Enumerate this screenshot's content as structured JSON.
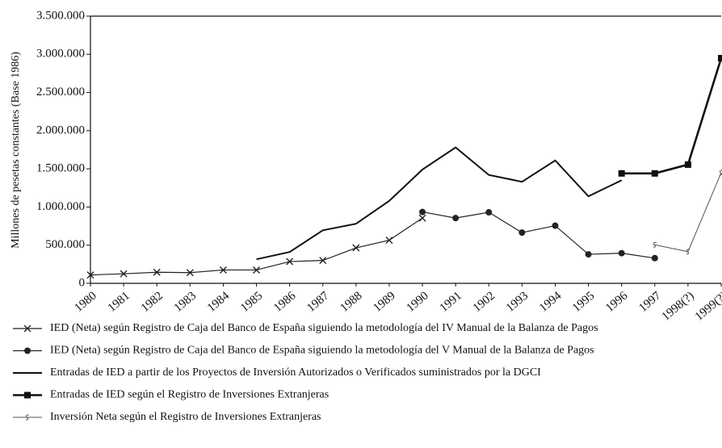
{
  "chart_data": {
    "type": "line",
    "y_label": "Millones de pesetas constantes (Base 1986)",
    "categories": [
      "1980",
      "1981",
      "1982",
      "1983",
      "1984",
      "1985",
      "1986",
      "1987",
      "1988",
      "1989",
      "1990",
      "1991",
      "1902",
      "1993",
      "1994",
      "1995",
      "1996",
      "1997",
      "1998(?)",
      "1999(?)"
    ],
    "ylim": [
      0,
      3500000
    ],
    "yticks": [
      0,
      {
        "value": 500000,
        "label": "500.000"
      },
      {
        "value": 1000000,
        "label": "1.000.000"
      },
      {
        "value": 1500000,
        "label": "1.500.000"
      },
      {
        "value": 2000000,
        "label": "2.000.000"
      },
      {
        "value": 2500000,
        "label": "2.500.000"
      },
      {
        "value": 3000000,
        "label": "3.000.000"
      },
      {
        "value": 3500000,
        "label": "3.500.000"
      }
    ],
    "series": [
      {
        "name": "IED (Neta) según Registro de Caja del Banco de España siguiendo la metodología del IV Manual de la Balanza de Pagos",
        "color": "#222222",
        "marker": "x",
        "values": [
          110000,
          125000,
          145000,
          140000,
          175000,
          175000,
          285000,
          300000,
          465000,
          565000,
          855000,
          null,
          null,
          null,
          null,
          null,
          null,
          null,
          null,
          null
        ]
      },
      {
        "name": "IED (Neta) según Registro de Caja del Banco de España siguiendo la metodología del V Manual de la Balanza de Pagos",
        "color": "#222222",
        "marker": "circle",
        "values": [
          null,
          null,
          null,
          null,
          null,
          null,
          null,
          null,
          null,
          null,
          935000,
          855000,
          930000,
          665000,
          755000,
          380000,
          395000,
          330000,
          null,
          null
        ]
      },
      {
        "name": "Entradas de IED a partir de los Proyectos de Inversión Autorizados o Verificados suministrados por la DGCI",
        "color": "#111111",
        "marker": "none",
        "values": [
          null,
          null,
          null,
          null,
          null,
          315000,
          410000,
          695000,
          780000,
          1080000,
          1490000,
          1780000,
          1420000,
          1330000,
          1610000,
          1140000,
          1350000,
          null,
          null,
          null
        ]
      },
      {
        "name": "Entradas de IED según el Registro de Inversiones Extranjeras",
        "color": "#111111",
        "marker": "square",
        "values": [
          null,
          null,
          null,
          null,
          null,
          null,
          null,
          null,
          null,
          null,
          null,
          null,
          null,
          null,
          null,
          null,
          1440000,
          1440000,
          1555000,
          2950000
        ]
      },
      {
        "name": "Inversión Neta según el Registro de Inversiones Extranjeras",
        "color": "#555555",
        "marker": "s",
        "values": [
          null,
          null,
          null,
          null,
          null,
          null,
          null,
          null,
          null,
          null,
          null,
          null,
          null,
          null,
          null,
          null,
          null,
          505000,
          415000,
          1450000
        ]
      }
    ]
  }
}
